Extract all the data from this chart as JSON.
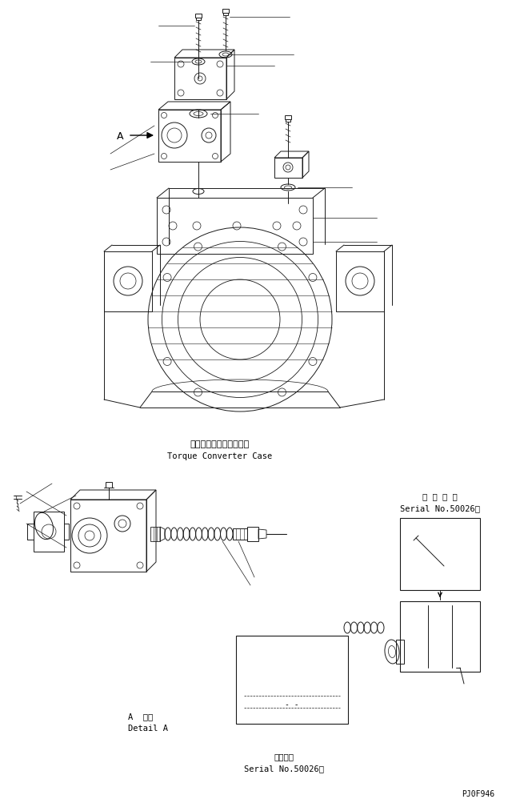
{
  "bg_color": "#ffffff",
  "line_color": "#1a1a1a",
  "fig_width": 6.45,
  "fig_height": 10.04,
  "dpi": 100,
  "label_torque_jp": "トルクコンバータケース",
  "label_torque_en": "Torque Converter Case",
  "label_detail_jp": "A  詳細",
  "label_detail_en": "Detail A",
  "label_serial_jp": "適 用 号 機",
  "label_serial_no": "Serial No.50026～",
  "label_serial_jp2": "適用号機",
  "label_serial_no2": "Serial No.50026～",
  "label_pj": "PJ0F946",
  "label_A": "A"
}
